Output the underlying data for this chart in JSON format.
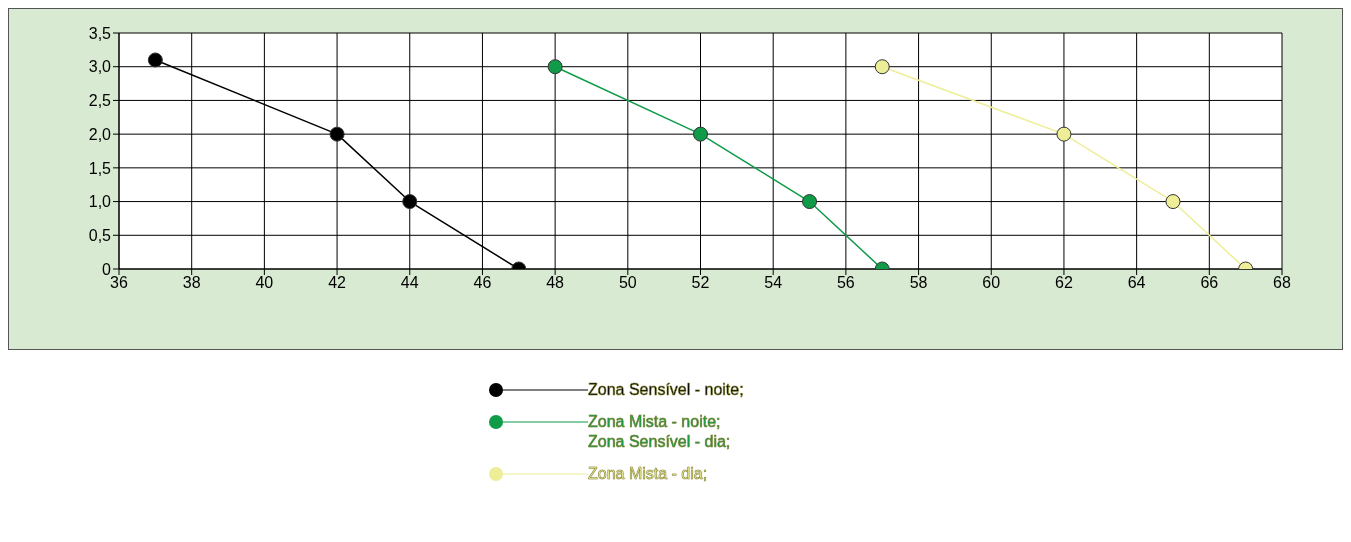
{
  "chart_data": {
    "type": "line",
    "series": [
      {
        "name": "Zona Sensível - noite;",
        "color": "#000000",
        "x": [
          37,
          42,
          44,
          47
        ],
        "values": [
          3.1,
          2.0,
          1.0,
          0
        ]
      },
      {
        "name": "Zona Mista - noite;\nZona Sensível - dia;",
        "color": "#0f9b48",
        "x": [
          48,
          52,
          55,
          57
        ],
        "values": [
          3.0,
          2.0,
          1.0,
          0
        ]
      },
      {
        "name": "Zona Mista - dia;",
        "color": "#eeee99",
        "x": [
          57,
          62,
          65,
          67
        ],
        "values": [
          3.0,
          2.0,
          1.0,
          0
        ]
      }
    ],
    "xlim": [
      36,
      68
    ],
    "xticks": [
      36,
      38,
      40,
      42,
      44,
      46,
      48,
      50,
      52,
      54,
      56,
      58,
      60,
      62,
      64,
      66,
      68
    ],
    "ylim": [
      0,
      3.5
    ],
    "yticks": [
      0,
      {
        "value": 0.5,
        "label": "0,5"
      },
      {
        "value": 1,
        "label": "1,0"
      },
      {
        "value": 1.5,
        "label": "1,5"
      },
      {
        "value": 2,
        "label": "2,0"
      },
      {
        "value": 2.5,
        "label": "2,5"
      },
      {
        "value": 3,
        "label": "3,0"
      },
      {
        "value": 3.5,
        "label": "3,5"
      }
    ],
    "grid": true,
    "legend": "bottom",
    "marker": "circle",
    "line_style": "solid"
  }
}
